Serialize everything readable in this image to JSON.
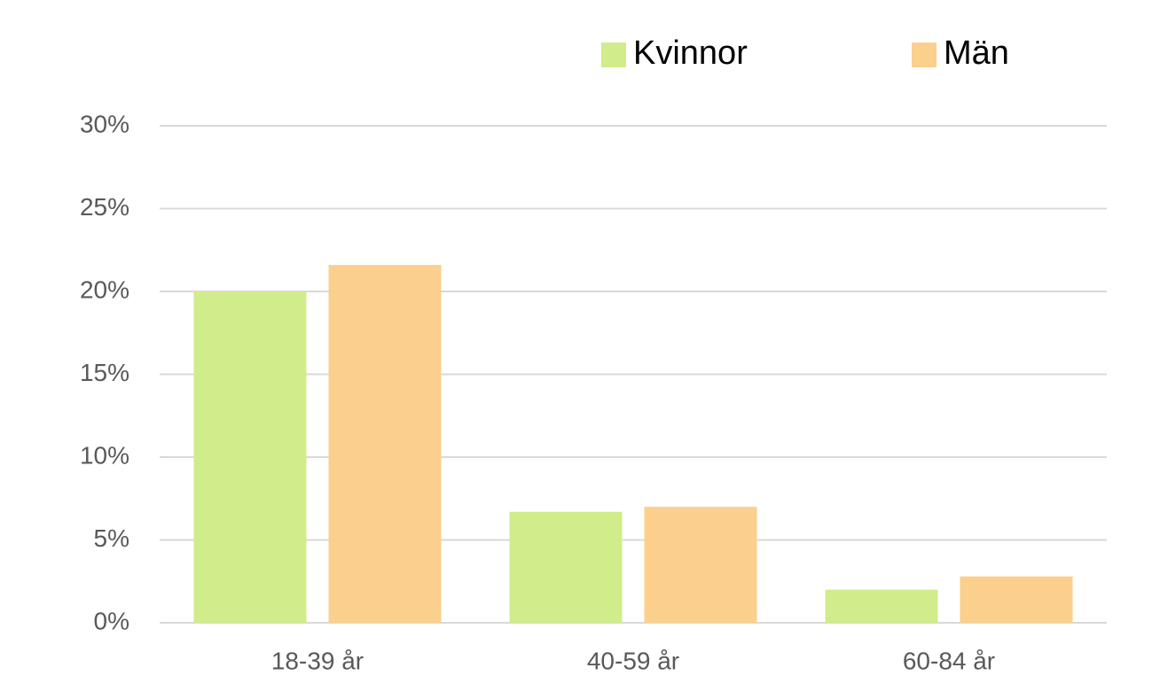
{
  "chart_data": {
    "type": "bar",
    "categories": [
      "18-39 år",
      "40-59 år",
      "60-84 år"
    ],
    "series": [
      {
        "name": "Kvinnor",
        "color": "#d1ec8a",
        "values": [
          20.0,
          6.7,
          2.0
        ]
      },
      {
        "name": "Män",
        "color": "#fbcf8c",
        "values": [
          21.6,
          7.0,
          2.8
        ]
      }
    ],
    "ylim": [
      0,
      30
    ],
    "yticks": [
      {
        "value": 0,
        "label": "0%"
      },
      {
        "value": 5,
        "label": "5%"
      },
      {
        "value": 10,
        "label": "10%"
      },
      {
        "value": 15,
        "label": "15%"
      },
      {
        "value": 20,
        "label": "20%"
      },
      {
        "value": 25,
        "label": "25%"
      },
      {
        "value": 30,
        "label": "30%"
      }
    ],
    "grid": true,
    "legend": "top"
  }
}
